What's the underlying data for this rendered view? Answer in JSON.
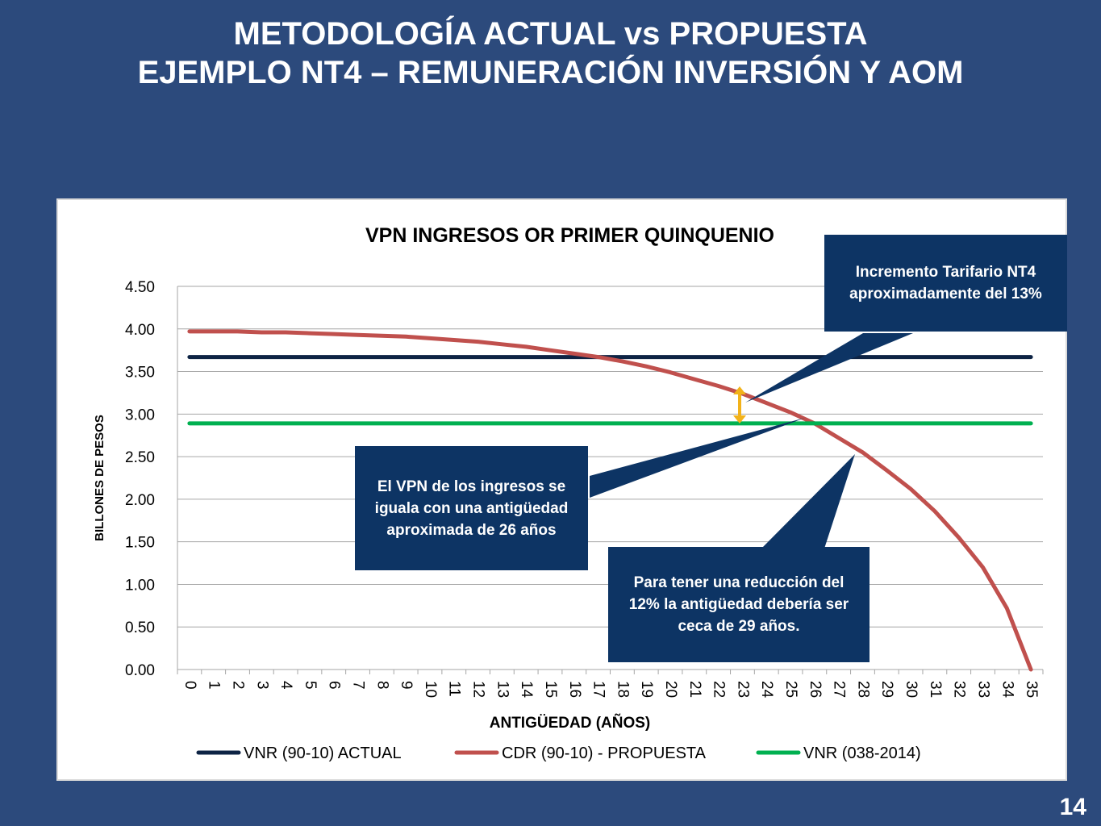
{
  "slide": {
    "title_line1": "METODOLOGÍA ACTUAL vs PROPUESTA",
    "title_line2": "EJEMPLO NT4 – REMUNERACIÓN INVERSIÓN Y AOM",
    "page_number": "14"
  },
  "colors": {
    "background": "#2c4a7c",
    "callout": "#0d3464",
    "arrow": "#f2b21a"
  },
  "callouts": {
    "increment": "Incremento Tarifario NT4 aproximadamente del 13%",
    "equal": "El VPN de los ingresos se iguala con una antigüedad aproximada de 26 años",
    "reduction": "Para tener una reducción del 12% la antigüedad debería ser ceca de 29 años."
  },
  "chart_data": {
    "type": "line",
    "title": "VPN INGRESOS OR PRIMER QUINQUENIO",
    "xlabel": "ANTIGÜEDAD (AÑOS)",
    "ylabel": "BILLONES DE PESOS",
    "ylim": [
      0,
      4.5
    ],
    "yticks": [
      "0.00",
      "0.50",
      "1.00",
      "1.50",
      "2.00",
      "2.50",
      "3.00",
      "3.50",
      "4.00",
      "4.50"
    ],
    "categories": [
      "0",
      "1",
      "2",
      "3",
      "4",
      "5",
      "6",
      "7",
      "8",
      "9",
      "10",
      "11",
      "12",
      "13",
      "14",
      "15",
      "16",
      "17",
      "18",
      "19",
      "20",
      "21",
      "22",
      "23",
      "24",
      "25",
      "26",
      "27",
      "28",
      "29",
      "30",
      "31",
      "32",
      "33",
      "34",
      "35"
    ],
    "grid": true,
    "legend_position": "bottom",
    "series": [
      {
        "name": "VNR (90-10) ACTUAL",
        "color": "#0d2344",
        "values": [
          3.67,
          3.67,
          3.67,
          3.67,
          3.67,
          3.67,
          3.67,
          3.67,
          3.67,
          3.67,
          3.67,
          3.67,
          3.67,
          3.67,
          3.67,
          3.67,
          3.67,
          3.67,
          3.67,
          3.67,
          3.67,
          3.67,
          3.67,
          3.67,
          3.67,
          3.67,
          3.67,
          3.67,
          3.67,
          3.67,
          3.67,
          3.67,
          3.67,
          3.67,
          3.67,
          3.67
        ]
      },
      {
        "name": "CDR (90-10) - PROPUESTA",
        "color": "#c0504d",
        "values": [
          3.97,
          3.97,
          3.97,
          3.96,
          3.96,
          3.95,
          3.94,
          3.93,
          3.92,
          3.91,
          3.89,
          3.87,
          3.85,
          3.82,
          3.79,
          3.75,
          3.71,
          3.67,
          3.62,
          3.56,
          3.49,
          3.41,
          3.33,
          3.24,
          3.13,
          3.02,
          2.89,
          2.72,
          2.55,
          2.34,
          2.12,
          1.86,
          1.55,
          1.2,
          0.72,
          0.0
        ]
      },
      {
        "name": "VNR (038-2014)",
        "color": "#00b050",
        "values": [
          2.89,
          2.89,
          2.89,
          2.89,
          2.89,
          2.89,
          2.89,
          2.89,
          2.89,
          2.89,
          2.89,
          2.89,
          2.89,
          2.89,
          2.89,
          2.89,
          2.89,
          2.89,
          2.89,
          2.89,
          2.89,
          2.89,
          2.89,
          2.89,
          2.89,
          2.89,
          2.89,
          2.89,
          2.89,
          2.89,
          2.89,
          2.89,
          2.89,
          2.89,
          2.89,
          2.89
        ]
      }
    ]
  }
}
